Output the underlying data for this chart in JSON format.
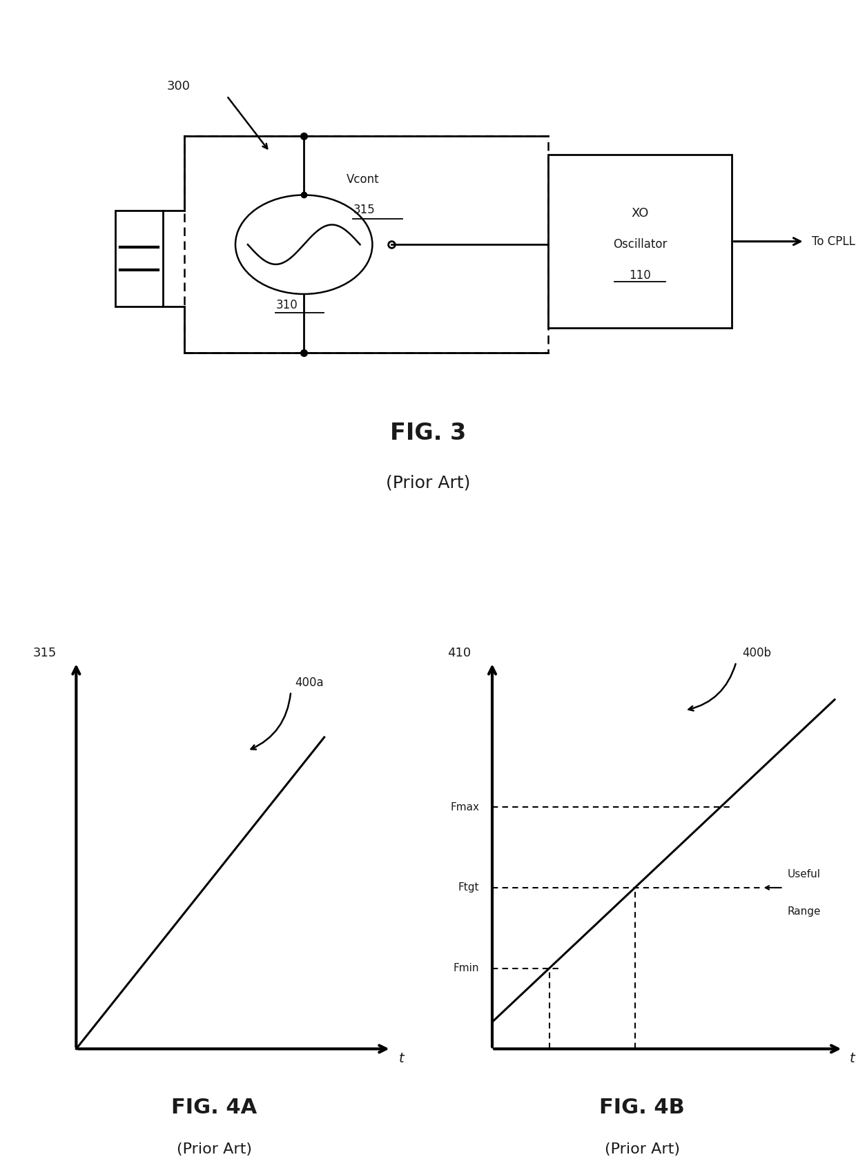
{
  "bg_color": "#ffffff",
  "fig_width": 12.4,
  "fig_height": 16.92,
  "line_color": "#000000",
  "text_color": "#1a1a1a",
  "fig3": {
    "label": "300",
    "title": "FIG. 3",
    "subtitle": "(Prior Art)",
    "vcont_label": "Vcont",
    "vcont_num": "315",
    "osc_num": "310",
    "xo_line1": "XO",
    "xo_line2": "Oscillator",
    "xo_num": "110",
    "cpll_label": "To CPLL"
  },
  "fig4a": {
    "label": "400a",
    "title": "FIG. 4A",
    "subtitle": "(Prior Art)",
    "ylabel": "315",
    "xlabel": "t"
  },
  "fig4b": {
    "label": "400b",
    "title": "FIG. 4B",
    "subtitle": "(Prior Art)",
    "ylabel": "410",
    "xlabel": "t",
    "fmax_label": "Fmax",
    "ftgt_label": "Ftgt",
    "fmin_label": "Fmin",
    "useful_range_1": "Useful",
    "useful_range_2": "Range"
  }
}
